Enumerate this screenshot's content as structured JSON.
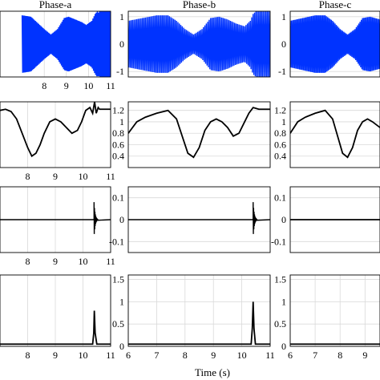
{
  "figure": {
    "xlabel": "Time (s)",
    "columns": [
      "Phase-a",
      "Phase-b",
      "Phase-c"
    ]
  },
  "chart_data": [
    {
      "type": "line",
      "row": 0,
      "col": 0,
      "title": "Phase-a",
      "xlim": [
        6,
        11
      ],
      "ylim": [
        -1.2,
        1.2
      ],
      "xticks": [
        "8",
        "9",
        "10",
        "11"
      ],
      "yticks": [],
      "color": "#0033ff",
      "series": [
        {
          "kind": "oscillation",
          "envelope": {
            "x": [
              7.0,
              7.4,
              7.6,
              8.0,
              8.3,
              8.6,
              8.9,
              9.1,
              9.4,
              9.7,
              9.9,
              10.15,
              10.3,
              10.4,
              10.45,
              10.5,
              10.6,
              11.0
            ],
            "values": [
              1.05,
              1.0,
              0.85,
              0.55,
              0.35,
              0.55,
              0.95,
              1.0,
              0.9,
              0.8,
              0.7,
              0.85,
              1.1,
              1.2,
              1.15,
              1.2,
              1.2,
              1.2
            ]
          }
        }
      ]
    },
    {
      "type": "line",
      "row": 0,
      "col": 1,
      "title": "Phase-b",
      "xlim": [
        6,
        11
      ],
      "ylim": [
        -1.2,
        1.2
      ],
      "xticks": [],
      "yticks": [
        "-1",
        "0",
        "1"
      ],
      "color": "#0033ff",
      "series": [
        {
          "kind": "oscillation",
          "envelope": {
            "x": [
              6.0,
              6.5,
              7.0,
              7.4,
              7.7,
              8.0,
              8.3,
              8.6,
              8.9,
              9.2,
              9.5,
              9.8,
              10.1,
              10.3,
              10.4,
              10.5,
              10.7,
              11.0
            ],
            "values": [
              0.85,
              0.95,
              1.05,
              1.05,
              0.85,
              0.55,
              0.35,
              0.55,
              0.95,
              1.0,
              0.9,
              0.75,
              0.65,
              0.85,
              1.1,
              1.2,
              1.2,
              1.2
            ]
          }
        }
      ]
    },
    {
      "type": "line",
      "row": 0,
      "col": 2,
      "title": "Phase-c",
      "xlim": [
        6,
        9.6
      ],
      "ylim": [
        -1.2,
        1.2
      ],
      "xticks": [],
      "yticks": [
        "-1",
        "0",
        "1"
      ],
      "color": "#0033ff",
      "series": [
        {
          "kind": "oscillation",
          "envelope": {
            "x": [
              6.0,
              6.5,
              7.0,
              7.4,
              7.7,
              8.0,
              8.3,
              8.6,
              8.9,
              9.2,
              9.6
            ],
            "values": [
              0.85,
              0.95,
              1.05,
              1.05,
              0.85,
              0.55,
              0.35,
              0.55,
              0.95,
              1.0,
              0.9
            ]
          }
        }
      ]
    },
    {
      "type": "line",
      "row": 1,
      "col": 0,
      "xlim": [
        7.0,
        11
      ],
      "ylim": [
        0.2,
        1.35
      ],
      "xticks": [
        "8",
        "9",
        "10",
        "11"
      ],
      "yticks": [],
      "color": "#000000",
      "series": [
        {
          "x": [
            7.0,
            7.2,
            7.4,
            7.6,
            7.8,
            8.0,
            8.15,
            8.3,
            8.45,
            8.6,
            8.8,
            9.0,
            9.2,
            9.4,
            9.6,
            9.8,
            9.95,
            10.1,
            10.25,
            10.35,
            10.42,
            10.48,
            10.55,
            10.6,
            11.0
          ],
          "values": [
            1.2,
            1.22,
            1.18,
            1.05,
            0.8,
            0.55,
            0.4,
            0.45,
            0.6,
            0.8,
            1.0,
            1.05,
            1.0,
            0.9,
            0.8,
            0.85,
            1.0,
            1.2,
            1.25,
            1.15,
            1.35,
            1.15,
            1.25,
            1.22,
            1.22
          ]
        }
      ]
    },
    {
      "type": "line",
      "row": 1,
      "col": 1,
      "xlim": [
        6,
        11
      ],
      "ylim": [
        0.2,
        1.35
      ],
      "xticks": [],
      "yticks": [
        "0.4",
        "0.6",
        "0.8",
        "1",
        "1.2"
      ],
      "color": "#000000",
      "series": [
        {
          "x": [
            6.0,
            6.3,
            6.6,
            7.0,
            7.4,
            7.7,
            7.9,
            8.1,
            8.3,
            8.5,
            8.7,
            8.9,
            9.1,
            9.3,
            9.5,
            9.7,
            9.9,
            10.1,
            10.25,
            10.4,
            10.6,
            11.0
          ],
          "values": [
            0.8,
            1.0,
            1.08,
            1.15,
            1.2,
            1.05,
            0.75,
            0.45,
            0.38,
            0.55,
            0.85,
            1.0,
            1.05,
            1.0,
            0.9,
            0.75,
            0.8,
            1.0,
            1.15,
            1.25,
            1.22,
            1.22
          ]
        }
      ]
    },
    {
      "type": "line",
      "row": 1,
      "col": 2,
      "xlim": [
        6,
        9.6
      ],
      "ylim": [
        0.2,
        1.35
      ],
      "xticks": [],
      "yticks": [
        "0.4",
        "0.6",
        "0.8",
        "1",
        "1.2"
      ],
      "color": "#000000",
      "series": [
        {
          "x": [
            6.0,
            6.3,
            6.6,
            7.0,
            7.4,
            7.7,
            7.9,
            8.1,
            8.3,
            8.5,
            8.7,
            8.9,
            9.1,
            9.3,
            9.6
          ],
          "values": [
            0.8,
            1.0,
            1.08,
            1.15,
            1.2,
            1.05,
            0.75,
            0.45,
            0.38,
            0.55,
            0.85,
            1.0,
            1.05,
            1.0,
            0.9
          ]
        }
      ]
    },
    {
      "type": "line",
      "row": 2,
      "col": 0,
      "xlim": [
        7.0,
        11
      ],
      "ylim": [
        -0.15,
        0.15
      ],
      "xticks": [
        "8",
        "9",
        "10",
        "11"
      ],
      "yticks": [],
      "color": "#000000",
      "series": [
        {
          "kind": "transient",
          "t0": 10.4,
          "amplitude": 0.08,
          "x": [
            7.0,
            11.0
          ],
          "values": [
            0,
            0
          ]
        }
      ]
    },
    {
      "type": "line",
      "row": 2,
      "col": 1,
      "xlim": [
        6,
        11
      ],
      "ylim": [
        -0.15,
        0.15
      ],
      "xticks": [],
      "yticks": [
        "-0.1",
        "0",
        "0.1"
      ],
      "color": "#000000",
      "series": [
        {
          "kind": "transient",
          "t0": 10.4,
          "amplitude": 0.08,
          "x": [
            6.0,
            11.0
          ],
          "values": [
            0,
            0
          ]
        }
      ]
    },
    {
      "type": "line",
      "row": 2,
      "col": 2,
      "xlim": [
        6,
        9.6
      ],
      "ylim": [
        -0.15,
        0.15
      ],
      "xticks": [],
      "yticks": [
        "-0.1",
        "0",
        "0.1"
      ],
      "color": "#000000",
      "series": [
        {
          "x": [
            6.0,
            9.6
          ],
          "values": [
            0,
            0
          ]
        }
      ]
    },
    {
      "type": "line",
      "row": 3,
      "col": 0,
      "xlim": [
        7.0,
        11
      ],
      "ylim": [
        0,
        1.6
      ],
      "xticks": [
        "8",
        "9",
        "10",
        "11"
      ],
      "yticks": [],
      "color": "#000000",
      "series": [
        {
          "x": [
            7.0,
            10.35,
            10.39,
            10.41,
            10.44,
            10.5,
            11.0
          ],
          "values": [
            0.05,
            0.05,
            0.3,
            0.8,
            0.3,
            0.05,
            0.05
          ]
        }
      ]
    },
    {
      "type": "line",
      "row": 3,
      "col": 1,
      "xlim": [
        6,
        11
      ],
      "ylim": [
        0,
        1.6
      ],
      "xticks": [
        "6",
        "7",
        "8",
        "9",
        "10",
        "11"
      ],
      "yticks": [
        "0",
        "0.5",
        "1",
        "1.5"
      ],
      "color": "#000000",
      "series": [
        {
          "x": [
            6.0,
            10.33,
            10.37,
            10.4,
            10.43,
            10.48,
            11.0
          ],
          "values": [
            0.05,
            0.05,
            0.4,
            1.0,
            0.4,
            0.05,
            0.05
          ]
        }
      ]
    },
    {
      "type": "line",
      "row": 3,
      "col": 2,
      "xlim": [
        6,
        9.6
      ],
      "ylim": [
        0,
        1.6
      ],
      "xticks": [
        "6",
        "7",
        "8",
        "9"
      ],
      "yticks": [
        "0",
        "0.5",
        "1",
        "1.5"
      ],
      "color": "#000000",
      "series": [
        {
          "x": [
            6.0,
            9.6
          ],
          "values": [
            0.05,
            0.05
          ]
        }
      ]
    }
  ]
}
